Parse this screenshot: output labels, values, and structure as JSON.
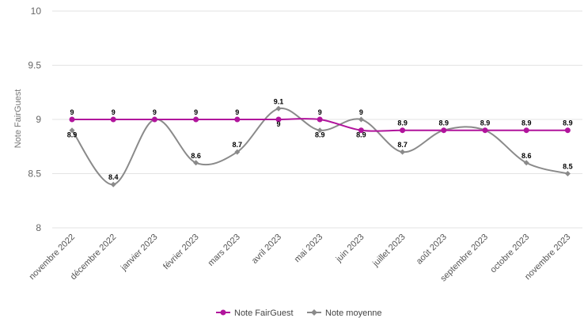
{
  "chart_data": {
    "type": "line",
    "ylabel": "Note FairGuest",
    "ylim": [
      8,
      10
    ],
    "yticks": [
      8,
      8.5,
      9,
      9.5,
      10
    ],
    "categories": [
      "novembre 2022",
      "décembre 2022",
      "janvier 2023",
      "février 2023",
      "mars 2023",
      "avril 2023",
      "mai 2023",
      "juin 2023",
      "juillet 2023",
      "août 2023",
      "septembre 2023",
      "octobre 2023",
      "novembre 2023"
    ],
    "series": [
      {
        "name": "Note FairGuest",
        "color": "#b1149c",
        "marker": "circle",
        "values": [
          9,
          9,
          9,
          9,
          9,
          9,
          9,
          8.9,
          8.9,
          8.9,
          8.9,
          8.9,
          8.9
        ]
      },
      {
        "name": "Note moyenne",
        "color": "#8a8a8a",
        "marker": "diamond",
        "values": [
          8.9,
          8.4,
          9,
          8.6,
          8.7,
          9.1,
          8.9,
          9,
          8.7,
          8.9,
          8.9,
          8.6,
          8.5
        ]
      }
    ],
    "grid": true,
    "legend": "bottom",
    "data_labels": true
  }
}
